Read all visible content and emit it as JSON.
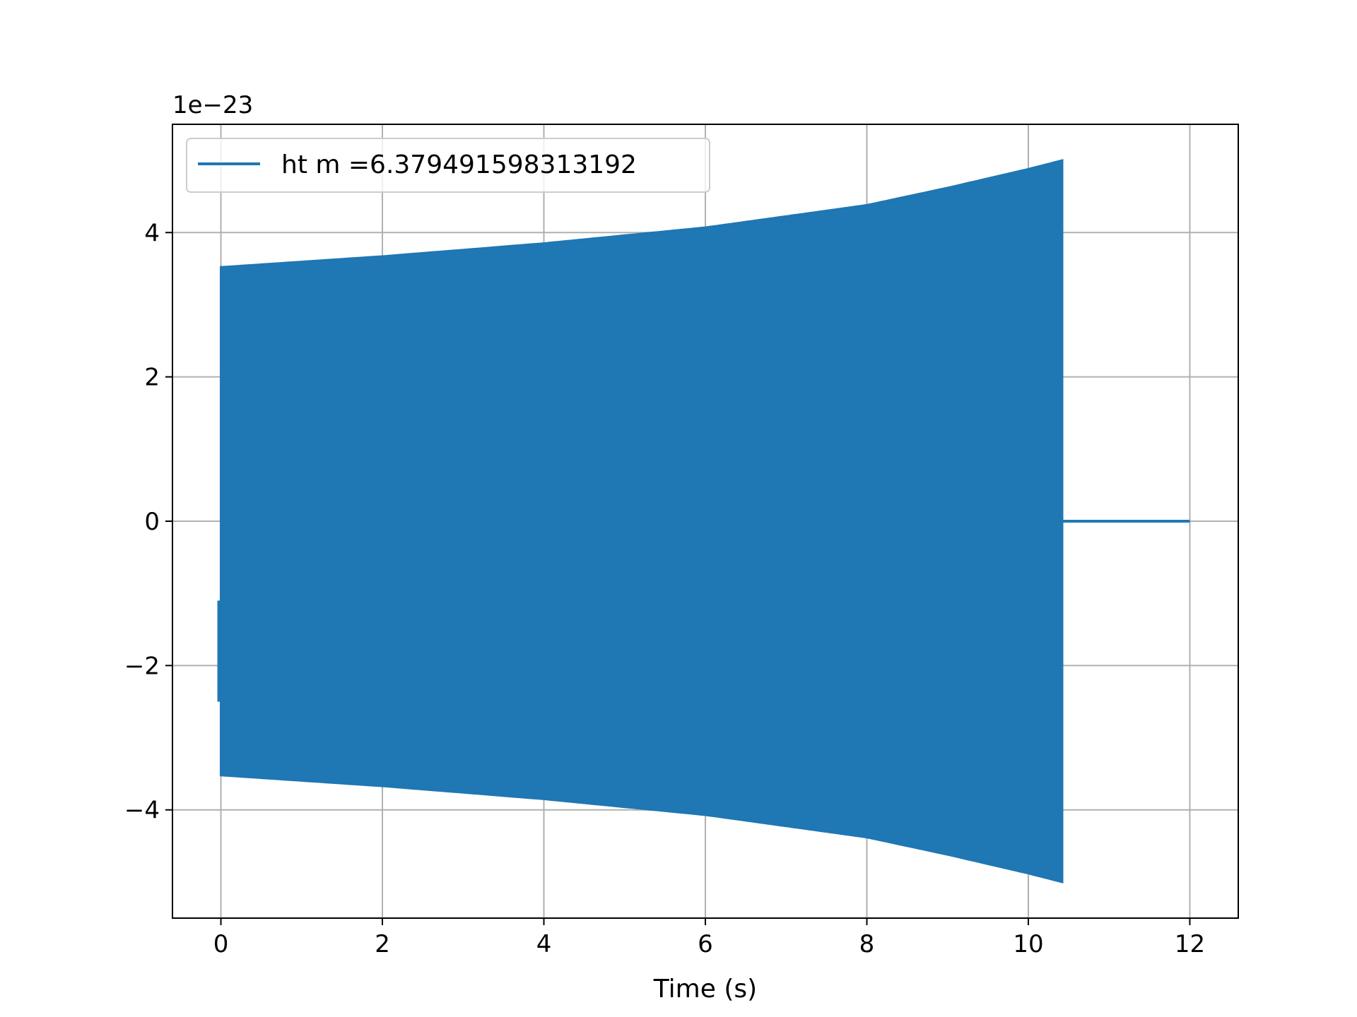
{
  "chart_data": {
    "type": "line",
    "title": "",
    "xlabel": "Time (s)",
    "ylabel": "",
    "xlim": [
      -0.6,
      12.6
    ],
    "ylim": [
      -5.5,
      5.5
    ],
    "x_ticks": [
      0,
      2,
      4,
      6,
      8,
      10,
      12
    ],
    "x_tick_labels": [
      "0",
      "2",
      "4",
      "6",
      "8",
      "10",
      "12"
    ],
    "y_ticks": [
      -4,
      -2,
      0,
      2,
      4
    ],
    "y_tick_labels": [
      "−4",
      "−2",
      "0",
      "2",
      "4"
    ],
    "y_offset_label": "1e−23",
    "grid": true,
    "legend": {
      "position": "top-left"
    },
    "series": [
      {
        "name": "ht m =6.379491598313192",
        "color": "#1f77b4",
        "signal_start": 0.0,
        "signal_end": 10.42,
        "series_end": 12.0,
        "envelope": {
          "x": [
            0.0,
            2.0,
            4.0,
            6.0,
            8.0,
            9.0,
            10.0,
            10.42
          ],
          "y": [
            3.52,
            3.67,
            3.85,
            4.07,
            4.38,
            4.62,
            4.88,
            5.0
          ]
        },
        "after_end_value": 0.0
      }
    ]
  }
}
